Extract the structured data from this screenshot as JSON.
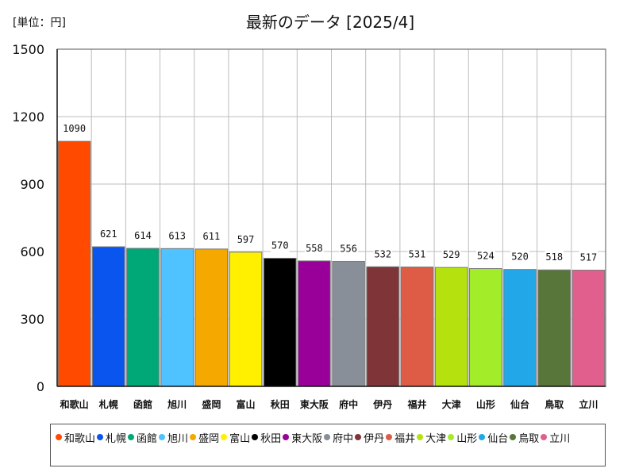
{
  "unit_label": "[単位：円]",
  "title": "最新のデータ [2025/4]",
  "chart_data": {
    "type": "bar",
    "categories": [
      "和歌山",
      "札幌",
      "函館",
      "旭川",
      "盛岡",
      "富山",
      "秋田",
      "東大阪",
      "府中",
      "伊丹",
      "福井",
      "大津",
      "山形",
      "仙台",
      "鳥取",
      "立川"
    ],
    "values": [
      1090,
      621,
      614,
      613,
      611,
      597,
      570,
      558,
      556,
      532,
      531,
      529,
      524,
      520,
      518,
      517
    ],
    "colors": [
      "#ff4a00",
      "#0a55ee",
      "#00a878",
      "#4fc3ff",
      "#f5a800",
      "#fff000",
      "#000000",
      "#990099",
      "#888f99",
      "#7f3438",
      "#de5c46",
      "#b5e20f",
      "#a3ec2a",
      "#22a8e8",
      "#58753a",
      "#e05f8d"
    ],
    "yticks": [
      "0",
      "300",
      "600",
      "900",
      "1200",
      "1500"
    ],
    "ylim": [
      0,
      1500
    ],
    "grid": true,
    "legend_position": "bottom",
    "data_labels": true
  }
}
